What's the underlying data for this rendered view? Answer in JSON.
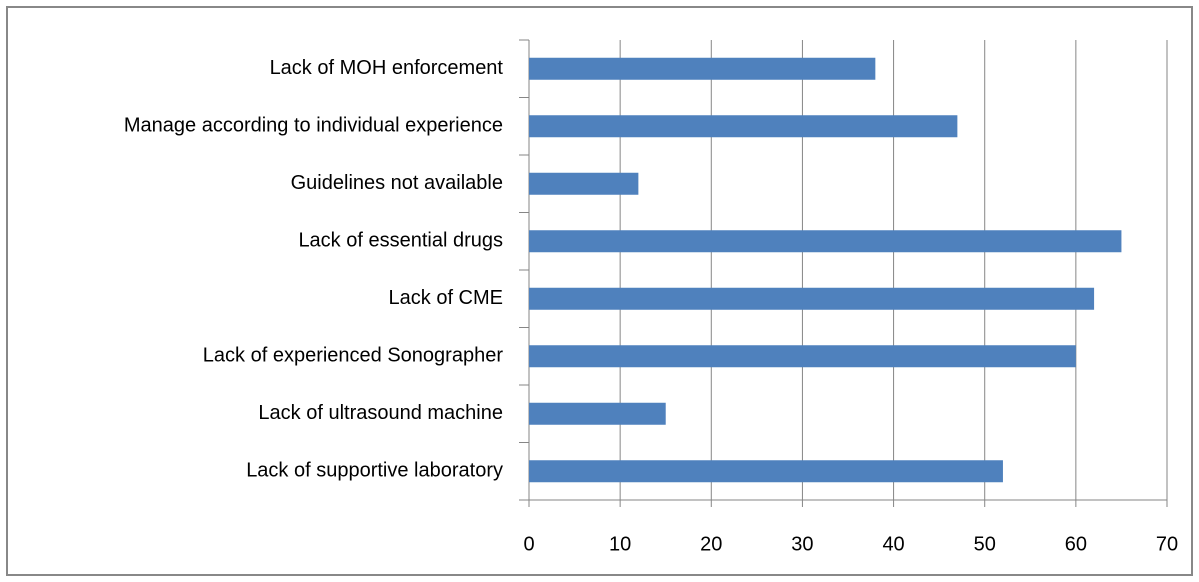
{
  "chart_data": {
    "type": "bar",
    "orientation": "horizontal",
    "categories": [
      "Lack of MOH enforcement",
      "Manage according to individual experience",
      "Guidelines not available",
      "Lack of essential drugs",
      "Lack of CME",
      "Lack of experienced Sonographer",
      "Lack of ultrasound machine",
      "Lack of supportive laboratory"
    ],
    "values": [
      38,
      47,
      12,
      65,
      62,
      60,
      15,
      52
    ],
    "color": "#4f81bd",
    "xlim": [
      0,
      70
    ],
    "xticks": [
      0,
      10,
      20,
      30,
      40,
      50,
      60,
      70
    ],
    "grid": true
  }
}
